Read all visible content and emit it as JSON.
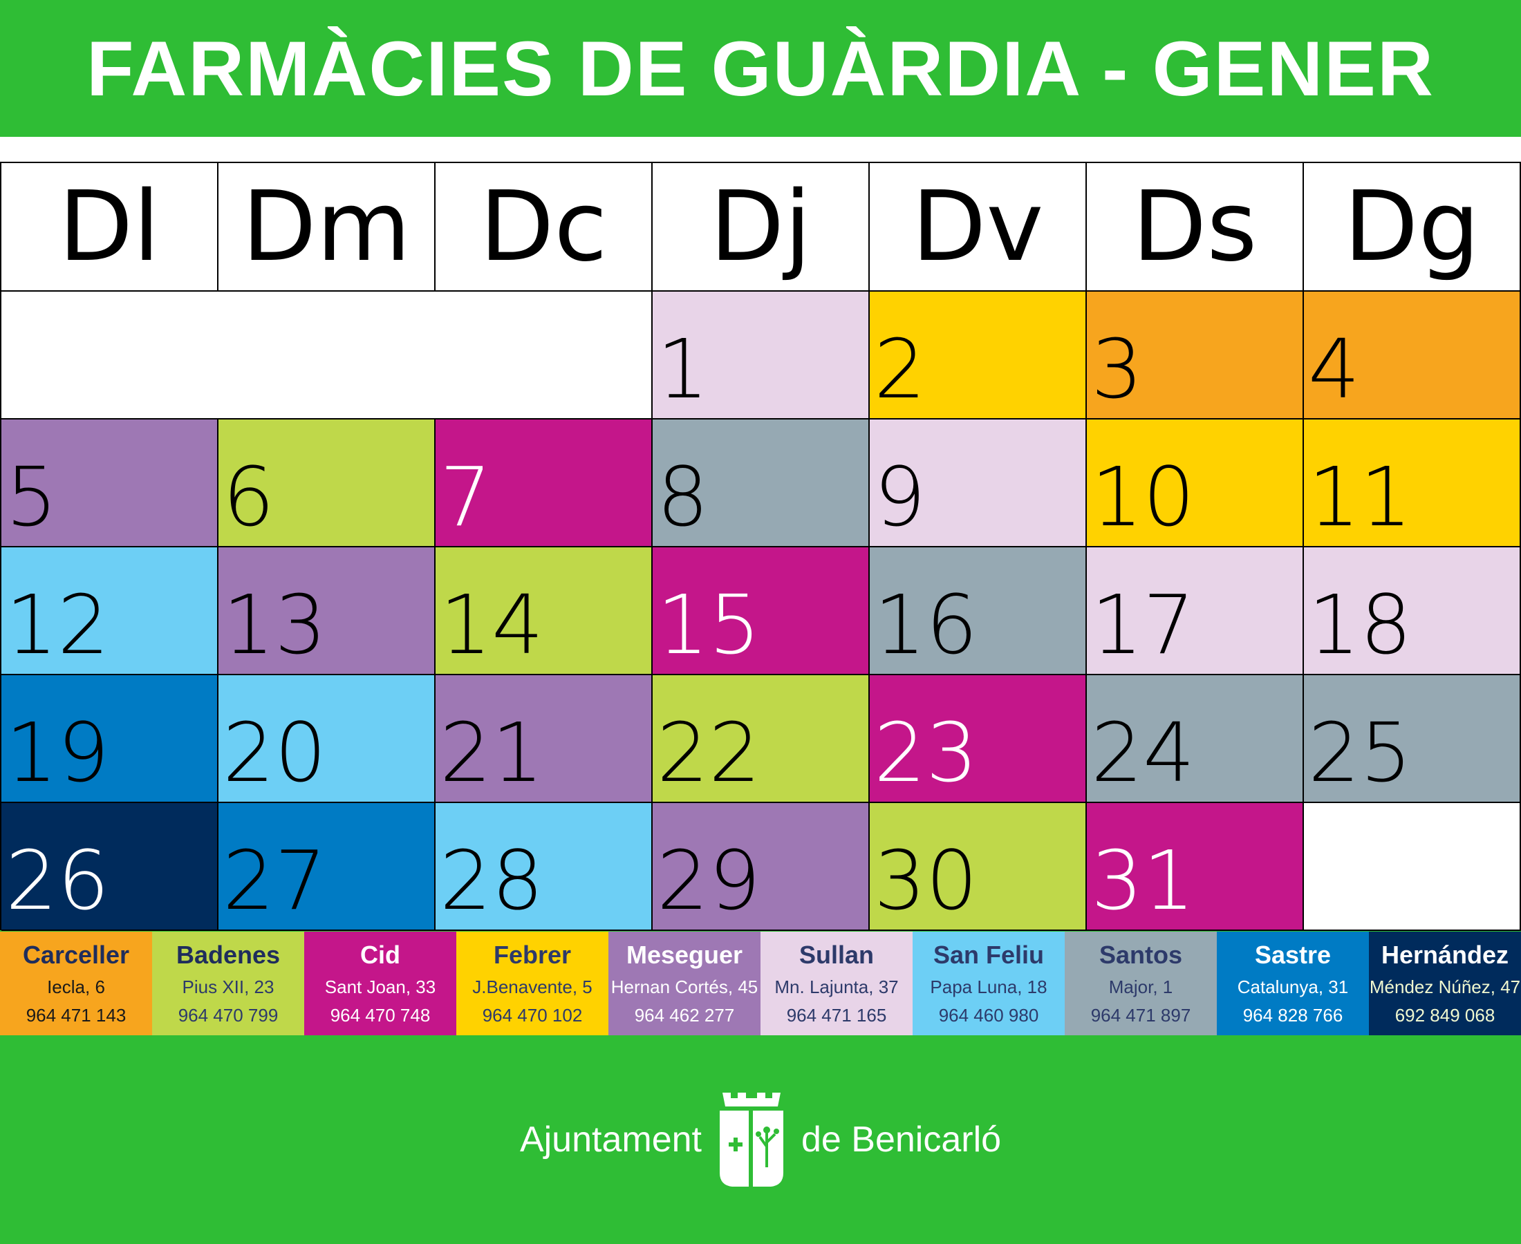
{
  "title": "FARMÀCIES DE GUÀRDIA - GENER",
  "weekdays": [
    "Dl",
    "Dm",
    "Dc",
    "Dj",
    "Dv",
    "Ds",
    "Dg"
  ],
  "leading_blank_days": 3,
  "days": [
    {
      "n": "1",
      "ph": "sullan"
    },
    {
      "n": "2",
      "ph": "febrer"
    },
    {
      "n": "3",
      "ph": "carceller"
    },
    {
      "n": "4",
      "ph": "carceller"
    },
    {
      "n": "5",
      "ph": "meseguer"
    },
    {
      "n": "6",
      "ph": "badenes"
    },
    {
      "n": "7",
      "ph": "cid"
    },
    {
      "n": "8",
      "ph": "santos"
    },
    {
      "n": "9",
      "ph": "sullan"
    },
    {
      "n": "10",
      "ph": "febrer"
    },
    {
      "n": "11",
      "ph": "febrer"
    },
    {
      "n": "12",
      "ph": "sanfeliu"
    },
    {
      "n": "13",
      "ph": "meseguer"
    },
    {
      "n": "14",
      "ph": "badenes"
    },
    {
      "n": "15",
      "ph": "cid"
    },
    {
      "n": "16",
      "ph": "santos"
    },
    {
      "n": "17",
      "ph": "sullan"
    },
    {
      "n": "18",
      "ph": "sullan"
    },
    {
      "n": "19",
      "ph": "sastre"
    },
    {
      "n": "20",
      "ph": "sanfeliu"
    },
    {
      "n": "21",
      "ph": "meseguer"
    },
    {
      "n": "22",
      "ph": "badenes"
    },
    {
      "n": "23",
      "ph": "cid"
    },
    {
      "n": "24",
      "ph": "santos"
    },
    {
      "n": "25",
      "ph": "santos"
    },
    {
      "n": "26",
      "ph": "hernandez"
    },
    {
      "n": "27",
      "ph": "sastre"
    },
    {
      "n": "28",
      "ph": "sanfeliu"
    },
    {
      "n": "29",
      "ph": "meseguer"
    },
    {
      "n": "30",
      "ph": "badenes"
    },
    {
      "n": "31",
      "ph": "cid"
    }
  ],
  "pharmacies": [
    {
      "id": "carceller",
      "name": "Carceller",
      "address": "Iecla, 6",
      "phone": "964 471 143",
      "bg": "#f7a51e",
      "name_color": "#1f2d5c",
      "text_color": "#1a1a1a",
      "day_text": "#000"
    },
    {
      "id": "badenes",
      "name": "Badenes",
      "address": "Pius XII, 23",
      "phone": "964 470 799",
      "bg": "#bfd84a",
      "name_color": "#1f2d5c",
      "text_color": "#2d3a6a",
      "day_text": "#000"
    },
    {
      "id": "cid",
      "name": "Cid",
      "address": "Sant Joan, 33",
      "phone": "964 470 748",
      "bg": "#c4168a",
      "name_color": "#ffffff",
      "text_color": "#ffffff",
      "day_text": "#fff"
    },
    {
      "id": "febrer",
      "name": "Febrer",
      "address": "J.Benavente, 5",
      "phone": "964 470 102",
      "bg": "#ffd200",
      "name_color": "#2d3a6a",
      "text_color": "#2d3a6a",
      "day_text": "#000"
    },
    {
      "id": "meseguer",
      "name": "Meseguer",
      "address": "Hernan Cortés, 45",
      "phone": "964 462 277",
      "bg": "#9e78b4",
      "name_color": "#ffffff",
      "text_color": "#ffffff",
      "day_text": "#000"
    },
    {
      "id": "sullan",
      "name": "Sullan",
      "address": "Mn. Lajunta, 37",
      "phone": "964 471 165",
      "bg": "#e8d4e8",
      "name_color": "#2d3a6a",
      "text_color": "#2d3a6a",
      "day_text": "#000"
    },
    {
      "id": "sanfeliu",
      "name": "San Feliu",
      "address": "Papa Luna, 18",
      "phone": "964 460 980",
      "bg": "#6dcff5",
      "name_color": "#2d3a6a",
      "text_color": "#2d3a6a",
      "day_text": "#000"
    },
    {
      "id": "santos",
      "name": "Santos",
      "address": "Major, 1",
      "phone": "964 471 897",
      "bg": "#96a9b3",
      "name_color": "#2d3a6a",
      "text_color": "#2d3a6a",
      "day_text": "#000"
    },
    {
      "id": "sastre",
      "name": "Sastre",
      "address": "Catalunya, 31",
      "phone": "964 828 766",
      "bg": "#007bc4",
      "name_color": "#ffffff",
      "text_color": "#ffffff",
      "day_text": "#000"
    },
    {
      "id": "hernandez",
      "name": "Hernández",
      "address": "Méndez Núñez, 47",
      "phone": "692 849 068",
      "bg": "#002b5c",
      "name_color": "#ffffff",
      "text_color": "#f0f8d0",
      "day_text": "#fff"
    }
  ],
  "footer": {
    "left": "Ajuntament",
    "right": "de Benicarló"
  }
}
